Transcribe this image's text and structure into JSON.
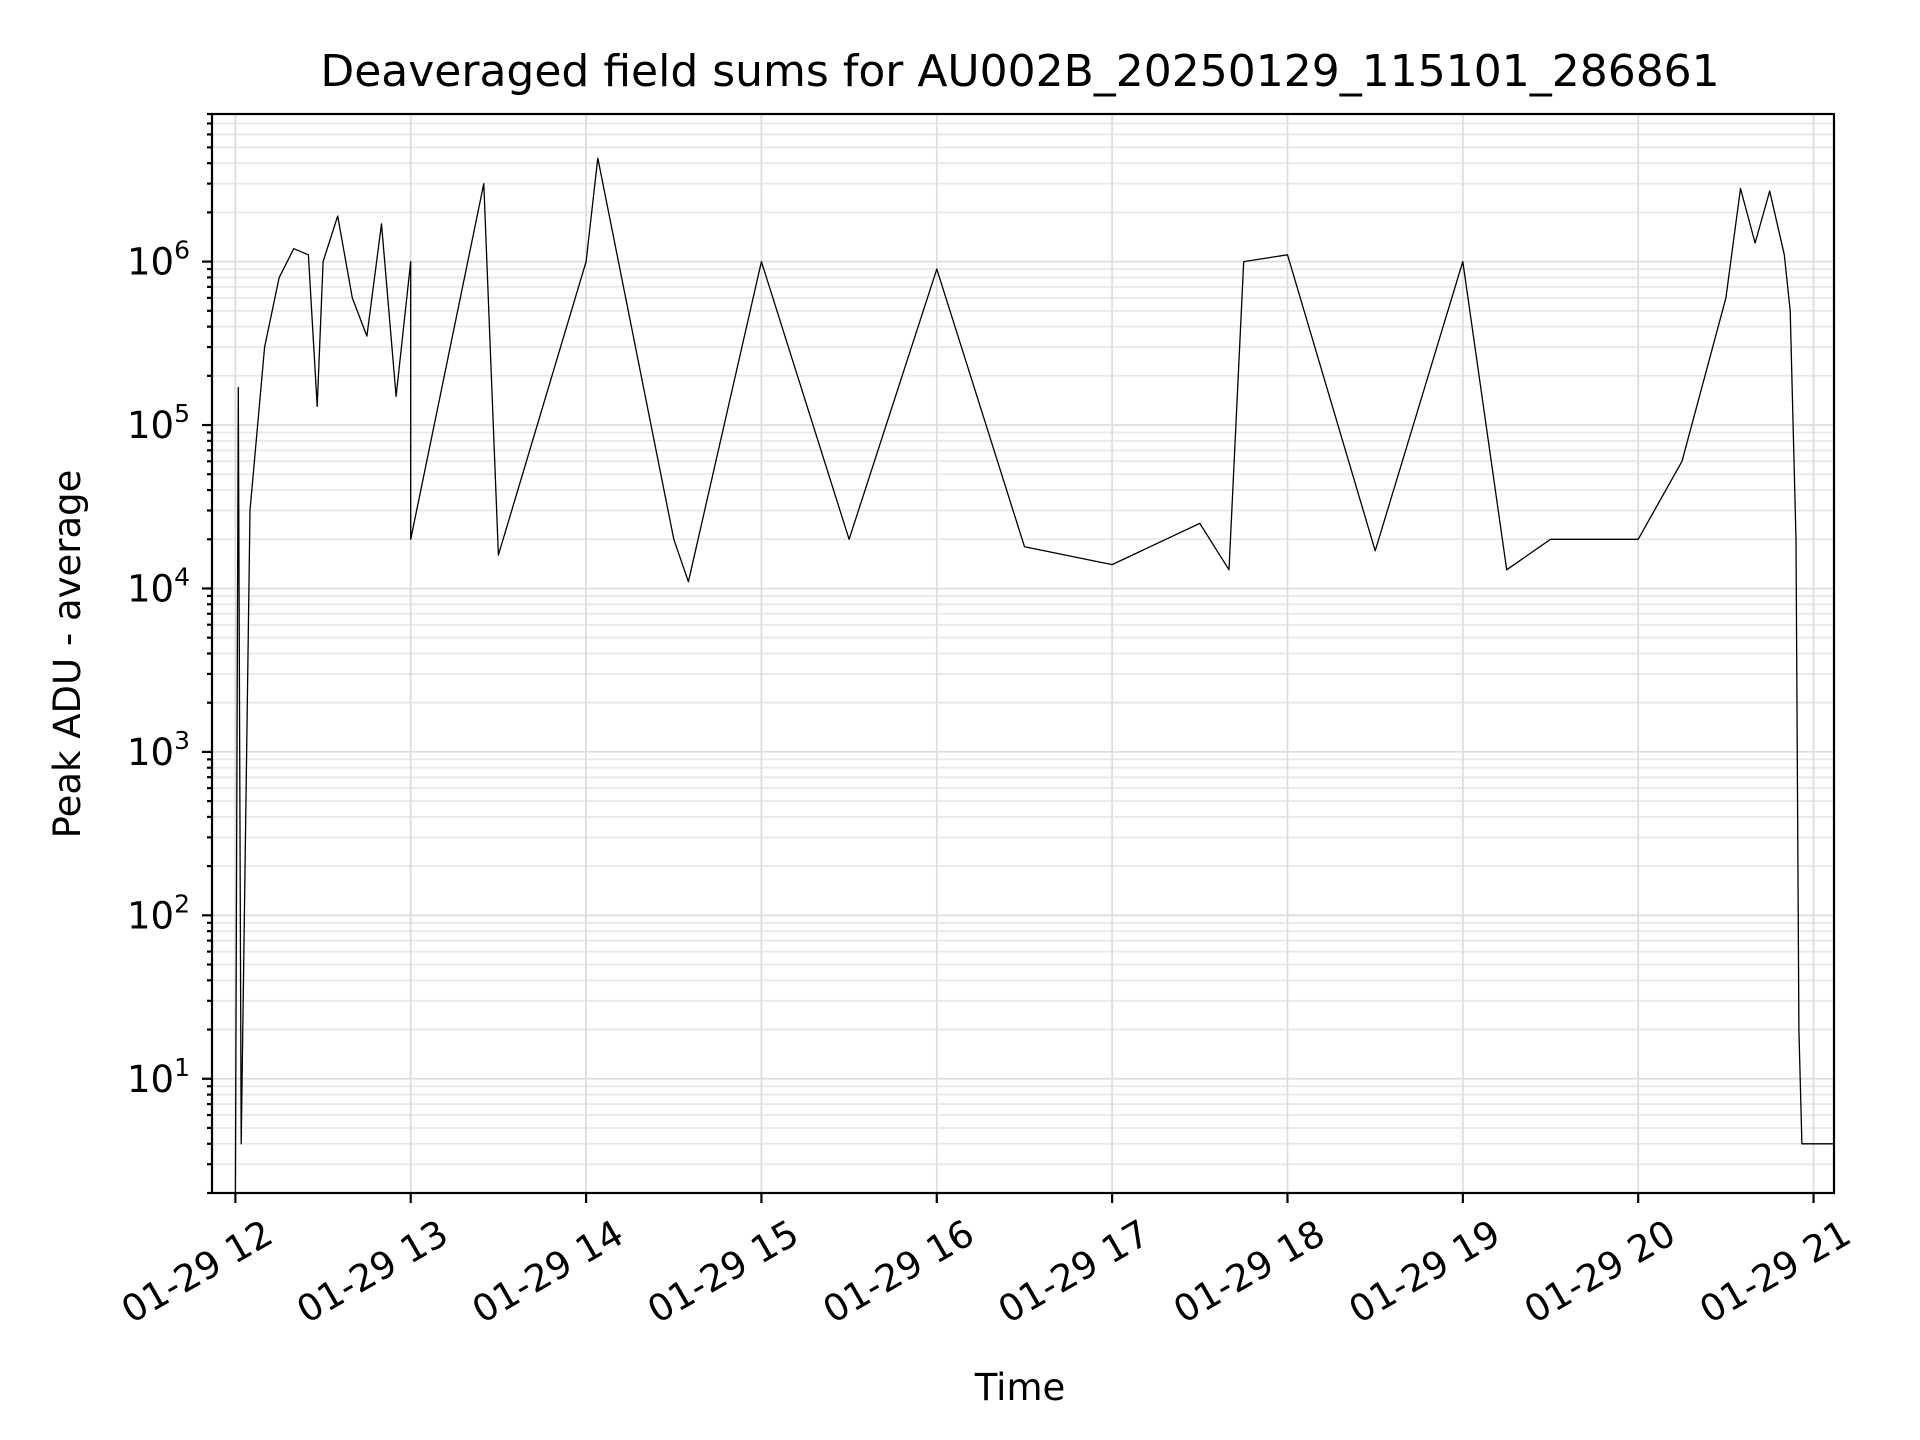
{
  "chart_data": {
    "type": "line",
    "title": "Deaveraged field sums for AU002B_20250129_115101_286861",
    "xlabel": "Time",
    "ylabel": "Peak ADU - average",
    "yscale": "log",
    "ylim": [
      2,
      8000000
    ],
    "xlim": [
      "2025-01-29 11:52",
      "2025-01-29 21:07"
    ],
    "grid": true,
    "line_color": "#000000",
    "x_ticks": [
      {
        "t": "2025-01-29 12:00",
        "label": "01-29 12"
      },
      {
        "t": "2025-01-29 13:00",
        "label": "01-29 13"
      },
      {
        "t": "2025-01-29 14:00",
        "label": "01-29 14"
      },
      {
        "t": "2025-01-29 15:00",
        "label": "01-29 15"
      },
      {
        "t": "2025-01-29 16:00",
        "label": "01-29 16"
      },
      {
        "t": "2025-01-29 17:00",
        "label": "01-29 17"
      },
      {
        "t": "2025-01-29 18:00",
        "label": "01-29 18"
      },
      {
        "t": "2025-01-29 19:00",
        "label": "01-29 19"
      },
      {
        "t": "2025-01-29 20:00",
        "label": "01-29 20"
      },
      {
        "t": "2025-01-29 21:00",
        "label": "01-29 21"
      }
    ],
    "y_ticks": [
      {
        "value": 10,
        "base": "10",
        "exp": "1"
      },
      {
        "value": 100,
        "base": "10",
        "exp": "2"
      },
      {
        "value": 1000,
        "base": "10",
        "exp": "3"
      },
      {
        "value": 10000,
        "base": "10",
        "exp": "4"
      },
      {
        "value": 100000,
        "base": "10",
        "exp": "5"
      },
      {
        "value": 1000000,
        "base": "10",
        "exp": "6"
      }
    ],
    "series": [
      {
        "points": [
          [
            "2025-01-29 12:00",
            2
          ],
          [
            "2025-01-29 12:01",
            170000
          ],
          [
            "2025-01-29 12:02",
            4
          ],
          [
            "2025-01-29 12:05",
            30000
          ],
          [
            "2025-01-29 12:10",
            300000
          ],
          [
            "2025-01-29 12:15",
            800000
          ],
          [
            "2025-01-29 12:20",
            1200000
          ],
          [
            "2025-01-29 12:25",
            1100000
          ],
          [
            "2025-01-29 12:28",
            130000
          ],
          [
            "2025-01-29 12:30",
            1000000
          ],
          [
            "2025-01-29 12:35",
            1900000
          ],
          [
            "2025-01-29 12:40",
            600000
          ],
          [
            "2025-01-29 12:45",
            350000
          ],
          [
            "2025-01-29 12:50",
            1700000
          ],
          [
            "2025-01-29 12:55",
            150000
          ],
          [
            "2025-01-29 13:00",
            1000000
          ],
          [
            "2025-01-29 13:00",
            20000
          ],
          [
            "2025-01-29 13:25",
            3000000
          ],
          [
            "2025-01-29 13:30",
            16000
          ],
          [
            "2025-01-29 14:00",
            1000000
          ],
          [
            "2025-01-29 14:04",
            4300000
          ],
          [
            "2025-01-29 14:30",
            20000
          ],
          [
            "2025-01-29 14:35",
            11000
          ],
          [
            "2025-01-29 15:00",
            1000000
          ],
          [
            "2025-01-29 15:30",
            20000
          ],
          [
            "2025-01-29 16:00",
            900000
          ],
          [
            "2025-01-29 16:30",
            18000
          ],
          [
            "2025-01-29 17:00",
            14000
          ],
          [
            "2025-01-29 17:30",
            25000
          ],
          [
            "2025-01-29 17:40",
            13000
          ],
          [
            "2025-01-29 17:45",
            1000000
          ],
          [
            "2025-01-29 18:00",
            1100000
          ],
          [
            "2025-01-29 18:30",
            17000
          ],
          [
            "2025-01-29 19:00",
            1000000
          ],
          [
            "2025-01-29 19:15",
            13000
          ],
          [
            "2025-01-29 19:30",
            20000
          ],
          [
            "2025-01-29 20:00",
            20000
          ],
          [
            "2025-01-29 20:15",
            60000
          ],
          [
            "2025-01-29 20:30",
            600000
          ],
          [
            "2025-01-29 20:35",
            2800000
          ],
          [
            "2025-01-29 20:40",
            1300000
          ],
          [
            "2025-01-29 20:45",
            2700000
          ],
          [
            "2025-01-29 20:50",
            1100000
          ],
          [
            "2025-01-29 20:52",
            500000
          ],
          [
            "2025-01-29 20:54",
            20000
          ],
          [
            "2025-01-29 20:55",
            20
          ],
          [
            "2025-01-29 20:56",
            4
          ],
          [
            "2025-01-29 21:07",
            4
          ]
        ]
      }
    ]
  }
}
